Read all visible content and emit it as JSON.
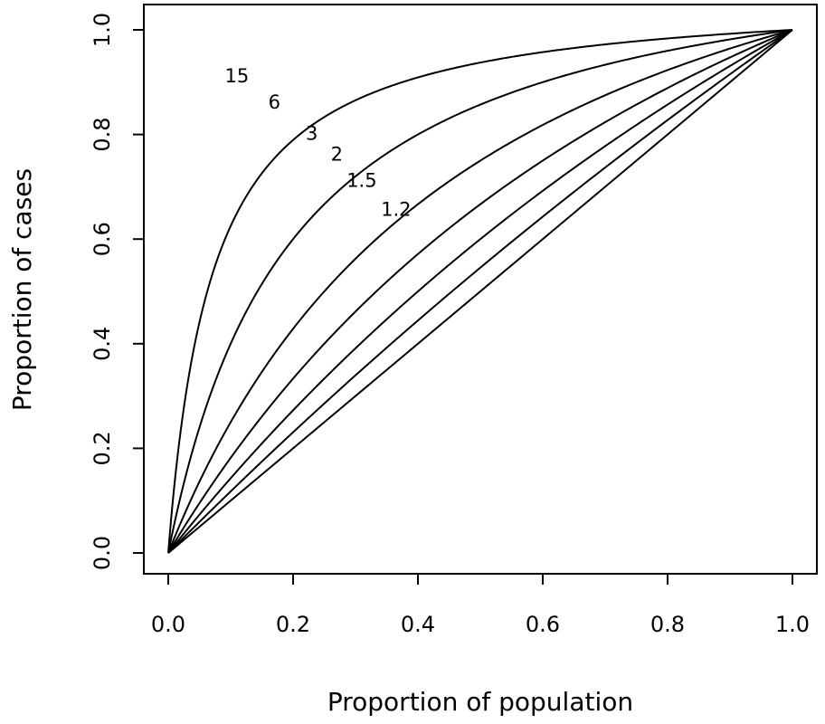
{
  "chart_data": {
    "type": "line",
    "title": "",
    "xlabel": "Proportion of population",
    "ylabel": "Proportion of cases",
    "xlim": [
      0.0,
      1.0
    ],
    "ylim": [
      0.0,
      1.0
    ],
    "x_ticks": [
      "0.0",
      "0.2",
      "0.4",
      "0.6",
      "0.8",
      "1.0"
    ],
    "y_ticks": [
      "0.0",
      "0.2",
      "0.4",
      "0.6",
      "0.8",
      "1.0"
    ],
    "grid": false,
    "legend": "none",
    "series": [
      {
        "name": "15",
        "k": 15,
        "label_at": [
          0.11,
          0.91
        ]
      },
      {
        "name": "6",
        "k": 6,
        "label_at": [
          0.17,
          0.86
        ]
      },
      {
        "name": "3",
        "k": 3,
        "label_at": [
          0.23,
          0.8
        ]
      },
      {
        "name": "2",
        "k": 2,
        "label_at": [
          0.27,
          0.76
        ]
      },
      {
        "name": "1.5",
        "k": 1.5,
        "label_at": [
          0.31,
          0.71
        ]
      },
      {
        "name": "1.2",
        "k": 1.2,
        "label_at": [
          0.365,
          0.655
        ]
      },
      {
        "name": "",
        "k": 1,
        "label_at": null
      }
    ]
  }
}
